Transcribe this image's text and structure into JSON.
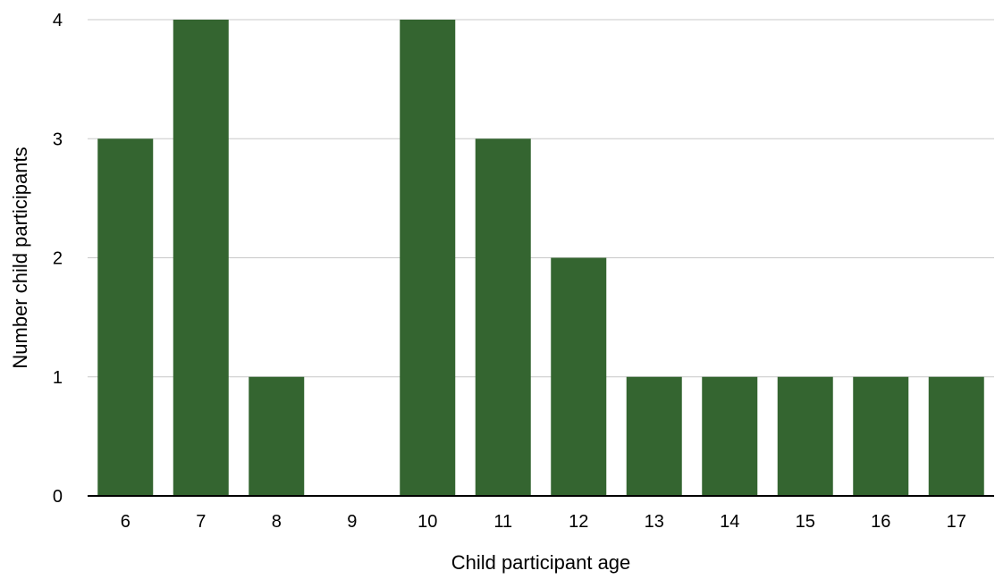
{
  "chart_data": {
    "type": "bar",
    "categories": [
      "6",
      "7",
      "8",
      "9",
      "10",
      "11",
      "12",
      "13",
      "14",
      "15",
      "16",
      "17"
    ],
    "values": [
      3,
      4,
      1,
      0,
      4,
      3,
      2,
      1,
      1,
      1,
      1,
      1
    ],
    "yticks": [
      "0",
      "1",
      "2",
      "3",
      "4"
    ],
    "ylim": [
      0,
      4
    ],
    "xlabel": "Child participant age",
    "ylabel": "Number child participants",
    "grid": true,
    "legend": "none",
    "bar_color": "#346530"
  }
}
